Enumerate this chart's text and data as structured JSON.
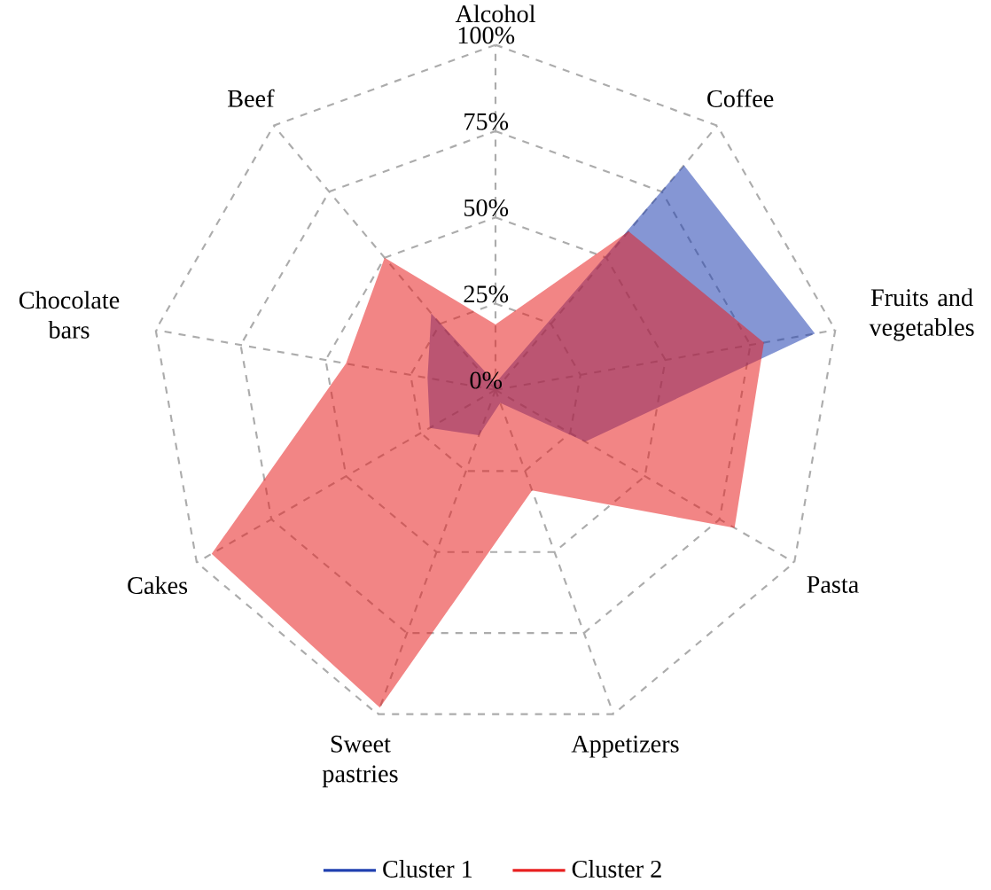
{
  "chart_data": {
    "type": "radar",
    "categories": [
      "Alcohol",
      "Coffee",
      "Fruits and vegetables",
      "Pasta",
      "Appetizers",
      "Sweet pastries",
      "Cakes",
      "Chocolate bars",
      "Beef"
    ],
    "series": [
      {
        "name": "Cluster 1",
        "color": "#2040b0",
        "values": [
          2,
          85,
          94,
          30,
          4,
          14,
          22,
          20,
          29
        ]
      },
      {
        "name": "Cluster 2",
        "color": "#e82020",
        "values": [
          19,
          60,
          79,
          80,
          31,
          98,
          95,
          44,
          50
        ]
      }
    ],
    "ylim": [
      0,
      100
    ],
    "yticks": [
      {
        "value": 0,
        "label": "0%"
      },
      {
        "value": 25,
        "label": "25%"
      },
      {
        "value": 50,
        "label": "50%"
      },
      {
        "value": 75,
        "label": "75%"
      },
      {
        "value": 100,
        "label": "100%"
      }
    ],
    "grid": true,
    "legend": "bottom"
  }
}
